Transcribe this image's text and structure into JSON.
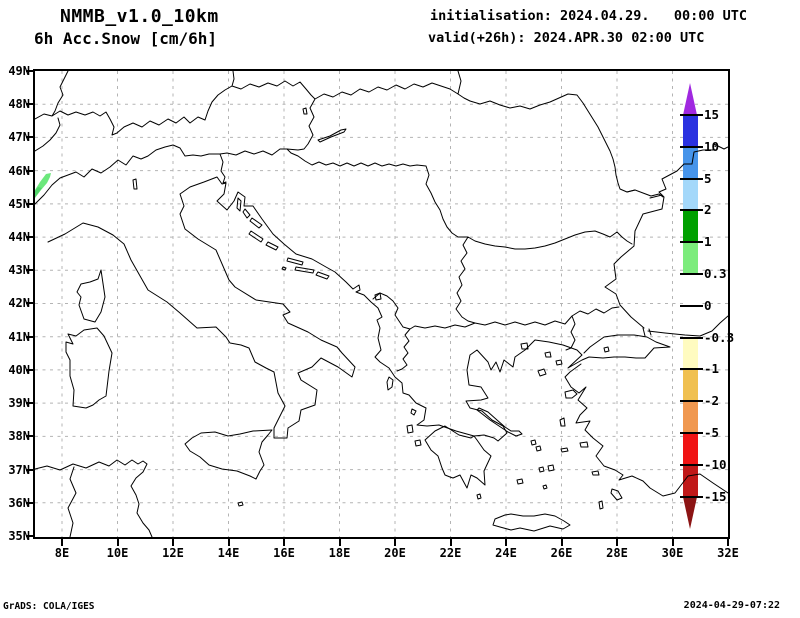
{
  "header": {
    "model_name": "NMMB_v1.0_10km",
    "field_name": "6h Acc.Snow [cm/6h]",
    "initialisation": "initialisation: 2024.04.29.   00:00 UTC",
    "valid": "valid(+26h): 2024.APR.30 02:00 UTC"
  },
  "footer": {
    "credit": "GrADS: COLA/IGES",
    "generated": "2024-04-29-07:22"
  },
  "map": {
    "lat_labels": [
      "49N",
      "48N",
      "47N",
      "46N",
      "45N",
      "44N",
      "43N",
      "42N",
      "41N",
      "40N",
      "39N",
      "38N",
      "37N",
      "36N",
      "35N"
    ],
    "lon_labels": [
      "8E",
      "10E",
      "12E",
      "14E",
      "16E",
      "18E",
      "20E",
      "22E",
      "24E",
      "26E",
      "28E",
      "30E",
      "32E"
    ],
    "grid_color": "#b4b4b4"
  },
  "colorbar": {
    "tick_labels": [
      "15",
      "10",
      "5",
      "2",
      "1",
      "0.3",
      "0",
      "-0.3",
      "-1",
      "-2",
      "-5",
      "-10",
      "-15"
    ],
    "segment_colors": [
      "#2a32e0",
      "#4694ea",
      "#a4d8fa",
      "#00a000",
      "#7cec7c",
      "#ffffff",
      "#ffffff",
      "#fffbc0",
      "#f0c050",
      "#f09850",
      "#f01414",
      "#c01818"
    ],
    "above_max_color": "#a028e0",
    "below_min_color": "#8c1414"
  },
  "snow": {
    "color": "#6ce87c",
    "tip_color": "#52d46a"
  },
  "chart_data": {
    "type": "map",
    "title": "NMMB_v1.0_10km 6h Acc.Snow [cm/6h]",
    "region": {
      "lon_range": [
        "7E",
        "32E"
      ],
      "lat_range": [
        "35N",
        "49N"
      ]
    },
    "scale_levels_cm": [
      15,
      10,
      5,
      2,
      1,
      0.3,
      0,
      -0.3,
      -1,
      -2,
      -5,
      -10,
      -15
    ],
    "data_points": [
      {
        "feature": "snow-accumulation-patch",
        "approx_lat": "45.5N",
        "approx_lon": "7.3E",
        "value_cm": "0.3 to 1"
      }
    ]
  }
}
